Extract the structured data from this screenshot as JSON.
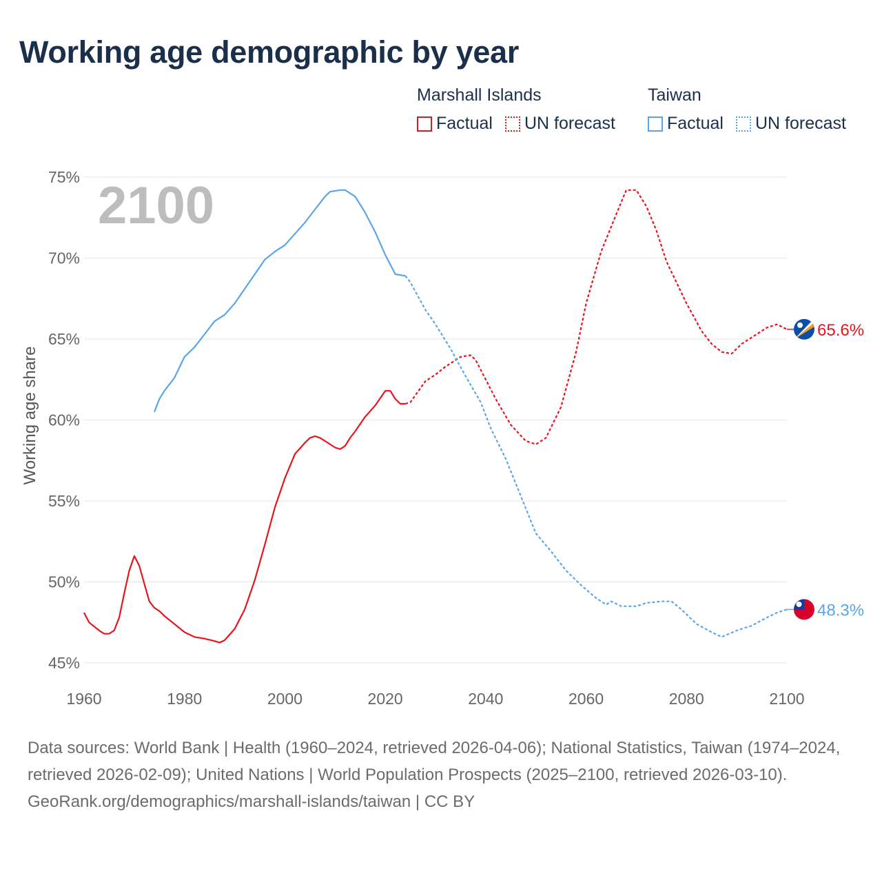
{
  "title": "Working age demographic by year",
  "legend": {
    "groups": [
      {
        "name": "Marshall Islands",
        "factual": "Factual",
        "forecast": "UN forecast",
        "color": "#e8131b"
      },
      {
        "name": "Taiwan",
        "factual": "Factual",
        "forecast": "UN forecast",
        "color": "#5aa5ea"
      }
    ]
  },
  "year_watermark": "2100",
  "chart_data": {
    "type": "line",
    "title": "Working age demographic by year",
    "xlabel": "",
    "ylabel": "Working age share",
    "xlim": [
      1960,
      2100
    ],
    "ylim": [
      45,
      75
    ],
    "x_ticks": [
      "1960",
      "1980",
      "2000",
      "2020",
      "2040",
      "2060",
      "2080",
      "2100"
    ],
    "x_tick_values": [
      1960,
      1980,
      2000,
      2020,
      2040,
      2060,
      2080,
      2100
    ],
    "y_ticks": [
      "45%",
      "50%",
      "55%",
      "60%",
      "65%",
      "70%",
      "75%"
    ],
    "y_tick_values": [
      45,
      50,
      55,
      60,
      65,
      70,
      75
    ],
    "grid": true,
    "series": [
      {
        "name": "Marshall Islands",
        "color": "#e8131b",
        "end_label": "65.6%",
        "flag": "marshall-islands-flag",
        "factual": [
          [
            1960,
            48.1
          ],
          [
            1961,
            47.5
          ],
          [
            1963,
            47.0
          ],
          [
            1964,
            46.8
          ],
          [
            1965,
            46.8
          ],
          [
            1966,
            47.0
          ],
          [
            1967,
            47.8
          ],
          [
            1968,
            49.3
          ],
          [
            1969,
            50.7
          ],
          [
            1970,
            51.6
          ],
          [
            1971,
            51.0
          ],
          [
            1972,
            49.9
          ],
          [
            1973,
            48.8
          ],
          [
            1974,
            48.4
          ],
          [
            1975,
            48.2
          ],
          [
            1976,
            47.9
          ],
          [
            1978,
            47.4
          ],
          [
            1980,
            46.9
          ],
          [
            1982,
            46.6
          ],
          [
            1984,
            46.5
          ],
          [
            1986,
            46.35
          ],
          [
            1987,
            46.25
          ],
          [
            1988,
            46.4
          ],
          [
            1990,
            47.1
          ],
          [
            1992,
            48.3
          ],
          [
            1994,
            50.1
          ],
          [
            1996,
            52.3
          ],
          [
            1998,
            54.6
          ],
          [
            2000,
            56.4
          ],
          [
            2002,
            57.9
          ],
          [
            2004,
            58.6
          ],
          [
            2005,
            58.9
          ],
          [
            2006,
            59.0
          ],
          [
            2007,
            58.9
          ],
          [
            2008,
            58.7
          ],
          [
            2010,
            58.3
          ],
          [
            2011,
            58.2
          ],
          [
            2012,
            58.4
          ],
          [
            2013,
            58.9
          ],
          [
            2014,
            59.3
          ],
          [
            2016,
            60.2
          ],
          [
            2018,
            60.9
          ],
          [
            2020,
            61.8
          ],
          [
            2021,
            61.8
          ],
          [
            2022,
            61.3
          ],
          [
            2023,
            61.0
          ],
          [
            2024,
            61.0
          ]
        ],
        "forecast": [
          [
            2024,
            61.0
          ],
          [
            2025,
            61.1
          ],
          [
            2028,
            62.4
          ],
          [
            2030,
            62.8
          ],
          [
            2032,
            63.3
          ],
          [
            2035,
            63.9
          ],
          [
            2037,
            64.0
          ],
          [
            2038,
            63.7
          ],
          [
            2040,
            62.5
          ],
          [
            2042,
            61.3
          ],
          [
            2045,
            59.7
          ],
          [
            2048,
            58.7
          ],
          [
            2050,
            58.5
          ],
          [
            2052,
            58.9
          ],
          [
            2055,
            60.8
          ],
          [
            2058,
            64.2
          ],
          [
            2060,
            67.2
          ],
          [
            2063,
            70.4
          ],
          [
            2066,
            72.7
          ],
          [
            2068,
            74.2
          ],
          [
            2070,
            74.2
          ],
          [
            2072,
            73.2
          ],
          [
            2074,
            71.7
          ],
          [
            2076,
            69.8
          ],
          [
            2078,
            68.5
          ],
          [
            2080,
            67.2
          ],
          [
            2083,
            65.5
          ],
          [
            2085,
            64.7
          ],
          [
            2087,
            64.2
          ],
          [
            2089,
            64.1
          ],
          [
            2091,
            64.7
          ],
          [
            2094,
            65.3
          ],
          [
            2096,
            65.7
          ],
          [
            2098,
            65.9
          ],
          [
            2100,
            65.6
          ]
        ]
      },
      {
        "name": "Taiwan",
        "color": "#5aa5ea",
        "end_label": "48.3%",
        "flag": "taiwan-flag",
        "factual": [
          [
            1974,
            60.5
          ],
          [
            1975,
            61.3
          ],
          [
            1976,
            61.8
          ],
          [
            1978,
            62.6
          ],
          [
            1980,
            63.9
          ],
          [
            1982,
            64.5
          ],
          [
            1984,
            65.3
          ],
          [
            1986,
            66.1
          ],
          [
            1988,
            66.5
          ],
          [
            1990,
            67.2
          ],
          [
            1992,
            68.1
          ],
          [
            1994,
            69.0
          ],
          [
            1996,
            69.9
          ],
          [
            1998,
            70.4
          ],
          [
            2000,
            70.8
          ],
          [
            2002,
            71.5
          ],
          [
            2004,
            72.2
          ],
          [
            2006,
            73.0
          ],
          [
            2008,
            73.8
          ],
          [
            2009,
            74.1
          ],
          [
            2011,
            74.2
          ],
          [
            2012,
            74.2
          ],
          [
            2014,
            73.8
          ],
          [
            2016,
            72.8
          ],
          [
            2018,
            71.6
          ],
          [
            2020,
            70.2
          ],
          [
            2022,
            69.0
          ],
          [
            2024,
            68.9
          ]
        ],
        "forecast": [
          [
            2024,
            68.9
          ],
          [
            2025,
            68.5
          ],
          [
            2028,
            66.8
          ],
          [
            2030,
            65.9
          ],
          [
            2033,
            64.4
          ],
          [
            2036,
            62.7
          ],
          [
            2039,
            61.1
          ],
          [
            2041,
            59.5
          ],
          [
            2044,
            57.6
          ],
          [
            2047,
            55.3
          ],
          [
            2050,
            53.0
          ],
          [
            2053,
            51.9
          ],
          [
            2056,
            50.7
          ],
          [
            2059,
            49.8
          ],
          [
            2062,
            49.0
          ],
          [
            2064,
            48.6
          ],
          [
            2065,
            48.8
          ],
          [
            2067,
            48.5
          ],
          [
            2070,
            48.5
          ],
          [
            2072,
            48.7
          ],
          [
            2075,
            48.8
          ],
          [
            2077,
            48.8
          ],
          [
            2079,
            48.3
          ],
          [
            2082,
            47.4
          ],
          [
            2085,
            46.9
          ],
          [
            2087,
            46.6
          ],
          [
            2090,
            47.0
          ],
          [
            2093,
            47.3
          ],
          [
            2096,
            47.8
          ],
          [
            2098,
            48.1
          ],
          [
            2100,
            48.3
          ]
        ]
      }
    ]
  },
  "footer": {
    "sources": "Data sources: World Bank | Health (1960–2024, retrieved 2026-04-06); National Statistics, Taiwan (1974–2024, retrieved 2026-02-09); United Nations | World Population Prospects (2025–2100, retrieved 2026-03-10).",
    "link": "GeoRank.org/demographics/marshall-islands/taiwan | CC BY"
  }
}
